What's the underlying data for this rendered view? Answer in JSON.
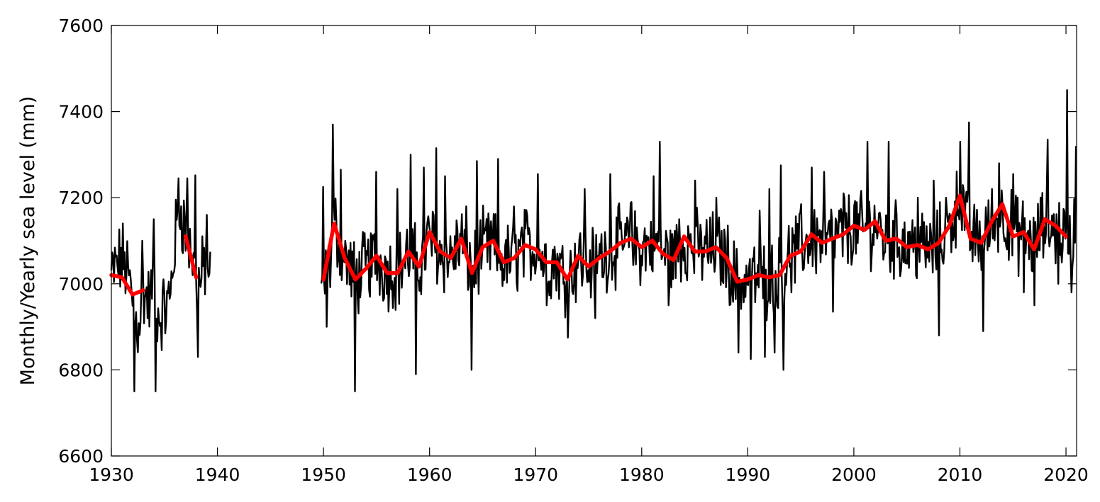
{
  "chart_data": {
    "type": "line",
    "title": "",
    "xlabel": "",
    "ylabel": "Monthly/Yearly sea level (mm)",
    "xlim": [
      1930,
      2021
    ],
    "ylim": [
      6600,
      7600
    ],
    "xticks": [
      1930,
      1940,
      1950,
      1960,
      1970,
      1980,
      1990,
      2000,
      2010,
      2020
    ],
    "xtick_labels": [
      "1930",
      "1940",
      "1950",
      "1960",
      "1970",
      "1980",
      "1990",
      "2000",
      "2010",
      "2020"
    ],
    "yticks": [
      6600,
      6800,
      7000,
      7200,
      7400,
      7600
    ],
    "ytick_labels": [
      "6600",
      "6800",
      "7000",
      "7200",
      "7400",
      "7600"
    ],
    "grid": false,
    "series": [
      {
        "label": "monthly",
        "color": "#000000",
        "segments": [
          {
            "start": 1930.0,
            "end": 1939.4,
            "step": 0.0833,
            "anchors": [
              [
                1930.0,
                7020
              ],
              [
                1930.5,
                7040
              ],
              [
                1931.0,
                7060
              ],
              [
                1931.5,
                7030
              ],
              [
                1932.0,
                6960
              ],
              [
                1932.5,
                6900
              ],
              [
                1933.0,
                6980
              ],
              [
                1933.5,
                6960
              ],
              [
                1934.0,
                6990
              ],
              [
                1934.5,
                6920
              ],
              [
                1935.0,
                6940
              ],
              [
                1935.5,
                6960
              ],
              [
                1936.0,
                7100
              ],
              [
                1936.5,
                7180
              ],
              [
                1937.0,
                7120
              ],
              [
                1937.5,
                7080
              ],
              [
                1938.0,
                6990
              ],
              [
                1938.5,
                7010
              ],
              [
                1939.0,
                7070
              ],
              [
                1939.4,
                7000
              ]
            ],
            "spikes": [
              [
                1932.2,
                6750
              ],
              [
                1932.9,
                7100
              ],
              [
                1934.2,
                6750
              ],
              [
                1934.0,
                7150
              ],
              [
                1936.3,
                7245
              ],
              [
                1937.2,
                7245
              ],
              [
                1937.9,
                7252
              ],
              [
                1938.2,
                6830
              ],
              [
                1939.0,
                7160
              ]
            ]
          },
          {
            "start": 1949.8,
            "end": 2021.0,
            "step": 0.0833,
            "anchors": [
              [
                1949.8,
                6960
              ],
              [
                1950.5,
                7030
              ],
              [
                1951.0,
                7140
              ],
              [
                1951.5,
                7100
              ],
              [
                1952.0,
                7060
              ],
              [
                1953.0,
                7010
              ],
              [
                1954.0,
                7040
              ],
              [
                1955.0,
                7060
              ],
              [
                1956.0,
                7030
              ],
              [
                1957.0,
                7030
              ],
              [
                1958.0,
                7070
              ],
              [
                1959.0,
                7040
              ],
              [
                1960.0,
                7110
              ],
              [
                1961.0,
                7070
              ],
              [
                1962.0,
                7060
              ],
              [
                1963.0,
                7100
              ],
              [
                1964.0,
                7030
              ],
              [
                1965.0,
                7080
              ],
              [
                1966.0,
                7090
              ],
              [
                1967.0,
                7050
              ],
              [
                1968.0,
                7060
              ],
              [
                1969.0,
                7090
              ],
              [
                1970.0,
                7080
              ],
              [
                1971.0,
                7050
              ],
              [
                1972.0,
                7050
              ],
              [
                1973.0,
                7010
              ],
              [
                1974.0,
                7060
              ],
              [
                1975.0,
                7040
              ],
              [
                1976.0,
                7060
              ],
              [
                1977.0,
                7080
              ],
              [
                1978.0,
                7090
              ],
              [
                1979.0,
                7100
              ],
              [
                1980.0,
                7080
              ],
              [
                1981.0,
                7100
              ],
              [
                1982.0,
                7070
              ],
              [
                1983.0,
                7060
              ],
              [
                1984.0,
                7100
              ],
              [
                1985.0,
                7080
              ],
              [
                1986.0,
                7080
              ],
              [
                1987.0,
                7080
              ],
              [
                1988.0,
                7060
              ],
              [
                1989.0,
                7000
              ],
              [
                1990.0,
                7010
              ],
              [
                1991.0,
                7010
              ],
              [
                1992.0,
                7010
              ],
              [
                1993.0,
                7020
              ],
              [
                1994.0,
                7060
              ],
              [
                1995.0,
                7080
              ],
              [
                1996.0,
                7110
              ],
              [
                1997.0,
                7100
              ],
              [
                1998.0,
                7100
              ],
              [
                1999.0,
                7120
              ],
              [
                2000.0,
                7130
              ],
              [
                2001.0,
                7120
              ],
              [
                2002.0,
                7140
              ],
              [
                2003.0,
                7100
              ],
              [
                2004.0,
                7100
              ],
              [
                2005.0,
                7090
              ],
              [
                2006.0,
                7090
              ],
              [
                2007.0,
                7080
              ],
              [
                2008.0,
                7090
              ],
              [
                2009.0,
                7130
              ],
              [
                2010.0,
                7200
              ],
              [
                2011.0,
                7110
              ],
              [
                2012.0,
                7100
              ],
              [
                2013.0,
                7140
              ],
              [
                2014.0,
                7170
              ],
              [
                2015.0,
                7120
              ],
              [
                2016.0,
                7110
              ],
              [
                2017.0,
                7090
              ],
              [
                2018.0,
                7140
              ],
              [
                2019.0,
                7130
              ],
              [
                2020.0,
                7110
              ],
              [
                2021.0,
                7140
              ]
            ],
            "spikes": [
              [
                1950.0,
                7225
              ],
              [
                1950.3,
                6900
              ],
              [
                1950.9,
                7370
              ],
              [
                1951.6,
                7265
              ],
              [
                1953.0,
                6750
              ],
              [
                1955.0,
                7260
              ],
              [
                1957.0,
                7220
              ],
              [
                1958.2,
                7300
              ],
              [
                1958.7,
                6790
              ],
              [
                1959.5,
                7270
              ],
              [
                1960.6,
                7315
              ],
              [
                1961.5,
                7250
              ],
              [
                1963.5,
                7180
              ],
              [
                1964.0,
                6800
              ],
              [
                1964.5,
                7285
              ],
              [
                1966.5,
                7290
              ],
              [
                1968.0,
                7180
              ],
              [
                1970.2,
                7255
              ],
              [
                1971.0,
                6950
              ],
              [
                1973.0,
                6875
              ],
              [
                1974.6,
                7220
              ],
              [
                1975.6,
                6920
              ],
              [
                1977.0,
                7255
              ],
              [
                1979.0,
                7190
              ],
              [
                1981.1,
                7250
              ],
              [
                1981.7,
                7330
              ],
              [
                1982.5,
                6950
              ],
              [
                1983.5,
                7150
              ],
              [
                1985.0,
                7240
              ],
              [
                1987.0,
                7200
              ],
              [
                1989.1,
                6840
              ],
              [
                1990.3,
                6825
              ],
              [
                1991.1,
                7170
              ],
              [
                1991.6,
                6830
              ],
              [
                1992.0,
                7220
              ],
              [
                1992.5,
                6840
              ],
              [
                1993.1,
                7275
              ],
              [
                1993.4,
                6800
              ],
              [
                1995.0,
                7185
              ],
              [
                1996.0,
                7270
              ],
              [
                1997.2,
                7260
              ],
              [
                1998.0,
                6935
              ],
              [
                1999.0,
                7210
              ],
              [
                2001.3,
                7330
              ],
              [
                2003.3,
                7330
              ],
              [
                2004.0,
                7160
              ],
              [
                2006.0,
                7200
              ],
              [
                2007.5,
                7240
              ],
              [
                2008.0,
                6880
              ],
              [
                2008.7,
                7200
              ],
              [
                2010.0,
                7330
              ],
              [
                2010.9,
                7375
              ],
              [
                2012.2,
                6890
              ],
              [
                2013.7,
                7280
              ],
              [
                2015.0,
                7255
              ],
              [
                2016.0,
                6980
              ],
              [
                2017.0,
                6950
              ],
              [
                2018.3,
                7335
              ],
              [
                2019.3,
                7000
              ],
              [
                2020.1,
                7450
              ],
              [
                2020.5,
                6980
              ],
              [
                2020.9,
                7320
              ]
            ]
          }
        ]
      },
      {
        "label": "yearly",
        "color": "#ff0000",
        "segments": [
          [
            [
              1930,
              7020
            ],
            [
              1931,
              7015
            ],
            [
              1932,
              6975
            ],
            [
              1933,
              6985
            ]
          ],
          [
            [
              1937,
              7110
            ],
            [
              1938,
              7015
            ]
          ],
          [
            [
              1950,
              7010
            ],
            [
              1951,
              7140
            ],
            [
              1952,
              7060
            ],
            [
              1953,
              7010
            ],
            [
              1954,
              7035
            ],
            [
              1955,
              7065
            ],
            [
              1956,
              7025
            ],
            [
              1957,
              7025
            ],
            [
              1958,
              7075
            ],
            [
              1959,
              7040
            ],
            [
              1960,
              7120
            ],
            [
              1961,
              7075
            ],
            [
              1962,
              7060
            ],
            [
              1963,
              7105
            ],
            [
              1964,
              7025
            ],
            [
              1965,
              7085
            ],
            [
              1966,
              7100
            ],
            [
              1967,
              7050
            ],
            [
              1968,
              7060
            ],
            [
              1969,
              7090
            ],
            [
              1970,
              7080
            ],
            [
              1971,
              7050
            ],
            [
              1972,
              7050
            ],
            [
              1973,
              7010
            ],
            [
              1974,
              7065
            ],
            [
              1975,
              7040
            ],
            [
              1976,
              7060
            ],
            [
              1977,
              7075
            ],
            [
              1978,
              7095
            ],
            [
              1979,
              7105
            ],
            [
              1980,
              7085
            ],
            [
              1981,
              7100
            ],
            [
              1982,
              7070
            ],
            [
              1983,
              7055
            ],
            [
              1984,
              7110
            ],
            [
              1985,
              7075
            ],
            [
              1986,
              7075
            ],
            [
              1987,
              7085
            ],
            [
              1988,
              7060
            ],
            [
              1989,
              7005
            ],
            [
              1990,
              7010
            ],
            [
              1991,
              7020
            ],
            [
              1992,
              7015
            ],
            [
              1993,
              7020
            ],
            [
              1994,
              7065
            ],
            [
              1995,
              7075
            ],
            [
              1996,
              7115
            ],
            [
              1997,
              7095
            ],
            [
              1998,
              7105
            ],
            [
              1999,
              7115
            ],
            [
              2000,
              7135
            ],
            [
              2001,
              7125
            ],
            [
              2002,
              7145
            ],
            [
              2003,
              7100
            ],
            [
              2004,
              7105
            ],
            [
              2005,
              7085
            ],
            [
              2006,
              7090
            ],
            [
              2007,
              7080
            ],
            [
              2008,
              7095
            ],
            [
              2009,
              7135
            ],
            [
              2010,
              7205
            ],
            [
              2011,
              7105
            ],
            [
              2012,
              7095
            ],
            [
              2013,
              7145
            ],
            [
              2014,
              7185
            ],
            [
              2015,
              7110
            ],
            [
              2016,
              7120
            ],
            [
              2017,
              7080
            ],
            [
              2018,
              7150
            ],
            [
              2019,
              7135
            ],
            [
              2020,
              7110
            ]
          ]
        ]
      }
    ]
  }
}
